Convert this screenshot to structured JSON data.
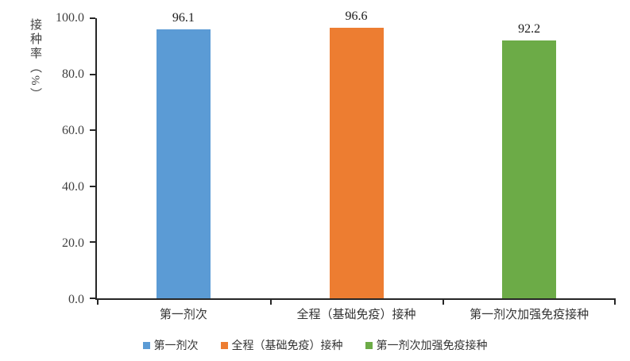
{
  "chart_data": {
    "type": "bar",
    "title": "",
    "categories": [
      "第一剂次",
      "全程（基础免疫）接种",
      "第一剂次加强免疫接种"
    ],
    "values": [
      96.1,
      96.6,
      92.2
    ],
    "value_labels": [
      "96.1",
      "96.6",
      "92.2"
    ],
    "colors": [
      "#5B9BD5",
      "#ED7D31",
      "#6CAB47"
    ],
    "ylabel": "接种率（%）",
    "xlabel": "",
    "ylim": [
      0,
      100
    ],
    "yticks": [
      0,
      20,
      40,
      60,
      80,
      100
    ],
    "ytick_labels": [
      "0.0",
      "20.0",
      "40.0",
      "60.0",
      "80.0",
      "100.0"
    ],
    "grid": false,
    "legend": {
      "position": "bottom",
      "entries": [
        "第一剂次",
        "全程（基础免疫）接种",
        "第一剂次加强免疫接种"
      ]
    },
    "axis_color": "#262626",
    "text_color": "#404040"
  }
}
